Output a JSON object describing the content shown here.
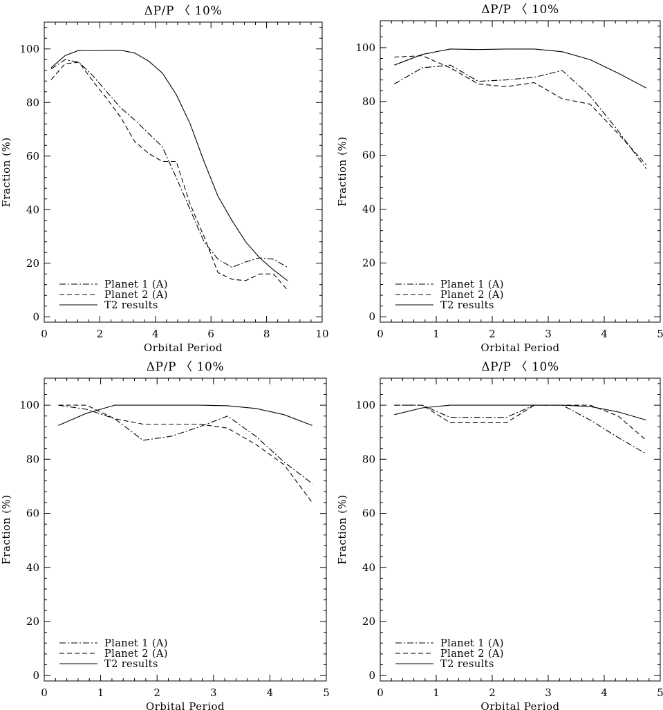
{
  "chart_data": [
    {
      "type": "line",
      "title": "ΔP/P 〈 10%",
      "xlabel": "Orbital Period",
      "ylabel": "Fraction (%)",
      "xlim": [
        0,
        10
      ],
      "ylim": [
        -2,
        110
      ],
      "xticks": [
        0,
        2,
        4,
        6,
        8,
        10
      ],
      "yticks": [
        0,
        20,
        40,
        60,
        80,
        100
      ],
      "legend": "bottom-left",
      "series": [
        {
          "name": "Planet 1 (A)",
          "style": "dashdot",
          "x": [
            0.25,
            0.75,
            1.25,
            1.75,
            2.25,
            2.75,
            3.25,
            3.75,
            4.25,
            4.75,
            5.25,
            5.75,
            6.25,
            6.75,
            7.25,
            7.75,
            8.25,
            8.75
          ],
          "y": [
            92.5,
            96,
            95,
            90,
            84,
            78,
            73.5,
            68.5,
            63.5,
            52,
            40,
            28,
            21.5,
            18.5,
            20.5,
            22,
            21.5,
            18.5
          ]
        },
        {
          "name": "Planet 2 (A)",
          "style": "dashed",
          "x": [
            0.25,
            0.75,
            1.25,
            1.75,
            2.25,
            2.75,
            3.25,
            3.75,
            4.25,
            4.75,
            5.25,
            5.75,
            6.25,
            6.75,
            7.25,
            7.75,
            8.25,
            8.75
          ],
          "y": [
            88.5,
            94.5,
            95,
            88,
            81.5,
            74.5,
            65.5,
            61,
            58,
            58,
            42,
            30,
            16.5,
            14,
            13.5,
            16,
            16,
            10
          ]
        },
        {
          "name": "T2 results",
          "style": "solid",
          "x": [
            0.25,
            0.75,
            1.25,
            1.75,
            2.25,
            2.75,
            3.25,
            3.75,
            4.25,
            4.75,
            5.25,
            5.75,
            6.25,
            6.75,
            7.25,
            7.75,
            8.25,
            8.75
          ],
          "y": [
            93,
            97.5,
            99.5,
            99.3,
            99.5,
            99.5,
            98.5,
            95.5,
            91,
            83,
            72,
            58,
            45,
            36,
            28,
            22,
            17.5,
            13.5
          ]
        }
      ]
    },
    {
      "type": "line",
      "title": "ΔP/P 〈 10%",
      "xlabel": "Orbital Period",
      "ylabel": "Fraction (%)",
      "xlim": [
        0,
        5
      ],
      "ylim": [
        -2,
        110
      ],
      "xticks": [
        0,
        1,
        2,
        3,
        4,
        5
      ],
      "yticks": [
        0,
        20,
        40,
        60,
        80,
        100
      ],
      "legend": "bottom-left",
      "series": [
        {
          "name": "Planet 1 (A)",
          "style": "dashdot",
          "x": [
            0.25,
            0.75,
            1.25,
            1.75,
            2.25,
            2.75,
            3.25,
            3.75,
            4.25,
            4.75
          ],
          "y": [
            86.5,
            92.5,
            93.5,
            87.5,
            88,
            89,
            91.5,
            82,
            69,
            55
          ]
        },
        {
          "name": "Planet 2 (A)",
          "style": "dashed",
          "x": [
            0.25,
            0.75,
            1.25,
            1.75,
            2.25,
            2.75,
            3.25,
            3.75,
            4.25,
            4.75
          ],
          "y": [
            96.5,
            97,
            92.5,
            86.5,
            85.5,
            87,
            81,
            79,
            68,
            56.5
          ]
        },
        {
          "name": "T2 results",
          "style": "solid",
          "x": [
            0.25,
            0.75,
            1.25,
            1.75,
            2.25,
            2.75,
            3.25,
            3.75,
            4.25,
            4.75
          ],
          "y": [
            93.5,
            97.5,
            99.5,
            99.3,
            99.5,
            99.5,
            98.5,
            95.5,
            90.5,
            85
          ]
        }
      ]
    },
    {
      "type": "line",
      "title": "ΔP/P 〈 10%",
      "xlabel": "Orbital Period",
      "ylabel": "Fraction (%)",
      "xlim": [
        0,
        5
      ],
      "ylim": [
        -2,
        110
      ],
      "xticks": [
        0,
        1,
        2,
        3,
        4,
        5
      ],
      "yticks": [
        0,
        20,
        40,
        60,
        80,
        100
      ],
      "legend": "bottom-left",
      "series": [
        {
          "name": "Planet 1 (A)",
          "style": "dashdot",
          "x": [
            0.25,
            0.75,
            1.25,
            1.75,
            2.25,
            2.75,
            3.25,
            3.75,
            4.25,
            4.75
          ],
          "y": [
            100,
            98.5,
            95,
            87,
            88.5,
            92,
            96,
            88.5,
            79,
            71
          ]
        },
        {
          "name": "Planet 2 (A)",
          "style": "dashed",
          "x": [
            0.25,
            0.75,
            1.25,
            1.75,
            2.25,
            2.75,
            3.25,
            3.75,
            4.25,
            4.75
          ],
          "y": [
            100,
            100,
            95,
            93,
            93,
            93,
            91.5,
            85.5,
            78,
            64
          ]
        },
        {
          "name": "T2 results",
          "style": "solid",
          "x": [
            0.25,
            0.75,
            1.25,
            1.75,
            2.25,
            2.75,
            3.25,
            3.75,
            4.25,
            4.75
          ],
          "y": [
            92.5,
            97,
            100,
            100,
            100,
            100,
            99.8,
            98.8,
            96.5,
            92.5
          ]
        }
      ]
    },
    {
      "type": "line",
      "title": "ΔP/P 〈 10%",
      "xlabel": "Orbital Period",
      "ylabel": "Fraction (%)",
      "xlim": [
        0,
        5
      ],
      "ylim": [
        -2,
        110
      ],
      "xticks": [
        0,
        1,
        2,
        3,
        4,
        5
      ],
      "yticks": [
        0,
        20,
        40,
        60,
        80,
        100
      ],
      "legend": "bottom-left",
      "series": [
        {
          "name": "Planet 1 (A)",
          "style": "dashdot",
          "x": [
            0.25,
            0.75,
            1.25,
            1.75,
            2.25,
            2.75,
            3.25,
            3.75,
            4.25,
            4.75
          ],
          "y": [
            100,
            100,
            95.5,
            95.5,
            95.5,
            100,
            100,
            94.5,
            88,
            82
          ]
        },
        {
          "name": "Planet 2 (A)",
          "style": "dashed",
          "x": [
            0.25,
            0.75,
            1.25,
            1.75,
            2.25,
            2.75,
            3.25,
            3.75,
            4.25,
            4.75
          ],
          "y": [
            100,
            100,
            93.5,
            93.5,
            93.5,
            100,
            100,
            100,
            96,
            87
          ]
        },
        {
          "name": "T2 results",
          "style": "solid",
          "x": [
            0.25,
            0.75,
            1.25,
            1.75,
            2.25,
            2.75,
            3.25,
            3.75,
            4.25,
            4.75
          ],
          "y": [
            96.5,
            99,
            100,
            100,
            100,
            100,
            100,
            99.5,
            97.5,
            94.5
          ]
        }
      ]
    }
  ]
}
